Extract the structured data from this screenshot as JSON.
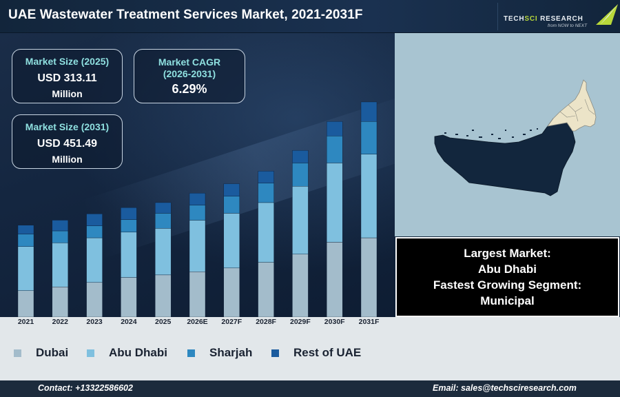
{
  "header": {
    "title": "UAE Wastewater Treatment Services Market, 2021-2031F",
    "logo_name_part1": "TECH",
    "logo_name_part2": "SCI",
    "logo_name_part3": " RESEARCH",
    "logo_tagline": "from NOW to NEXT"
  },
  "kpis": {
    "size_2025": {
      "label": "Market Size (2025)",
      "value": "USD 313.11",
      "unit": "Million"
    },
    "cagr": {
      "label_line1": "Market CAGR",
      "label_line2": "(2026-2031)",
      "value": "6.29%"
    },
    "size_2031": {
      "label": "Market Size (2031)",
      "value": "USD 451.49",
      "unit": "Million"
    }
  },
  "highlights": {
    "largest_label": "Largest Market:",
    "largest_value": "Abu Dhabi",
    "fastest_label": "Fastest Growing Segment:",
    "fastest_value": "Municipal"
  },
  "footer": {
    "contact": "Contact: +13322586602",
    "email": "Email: sales@techsciresearch.com"
  },
  "colors": {
    "dubai": "#a3bccb",
    "abu_dhabi": "#7fc0df",
    "sharjah": "#2e88c0",
    "rest": "#1a5b9e",
    "map_sea": "#a8c4d1",
    "map_abu_dhabi": "#12263d",
    "map_other_emirates": "#ece4c8"
  },
  "chart_data": {
    "type": "bar",
    "stacked": true,
    "categories": [
      "2021",
      "2022",
      "2023",
      "2024",
      "2025",
      "2026E",
      "2027F",
      "2028F",
      "2029F",
      "2030F",
      "2031F"
    ],
    "series": [
      {
        "name": "Dubai",
        "color": "#a3bccb",
        "values": [
          42,
          48,
          55,
          63,
          67,
          72,
          78,
          87,
          100,
          119,
          126
        ]
      },
      {
        "name": "Abu Dhabi",
        "color": "#7fc0df",
        "values": [
          70,
          70,
          71,
          72,
          74,
          82,
          87,
          95,
          108,
          126,
          133
        ]
      },
      {
        "name": "Sharjah",
        "color": "#2e88c0",
        "values": [
          20,
          19,
          19,
          20,
          24,
          24,
          27,
          31,
          37,
          43,
          52
        ]
      },
      {
        "name": "Rest of UAE",
        "color": "#1a5b9e",
        "values": [
          14,
          17,
          19,
          19,
          17,
          19,
          20,
          19,
          20,
          23,
          31
        ]
      }
    ],
    "legend_position": "bottom",
    "grid": false
  }
}
